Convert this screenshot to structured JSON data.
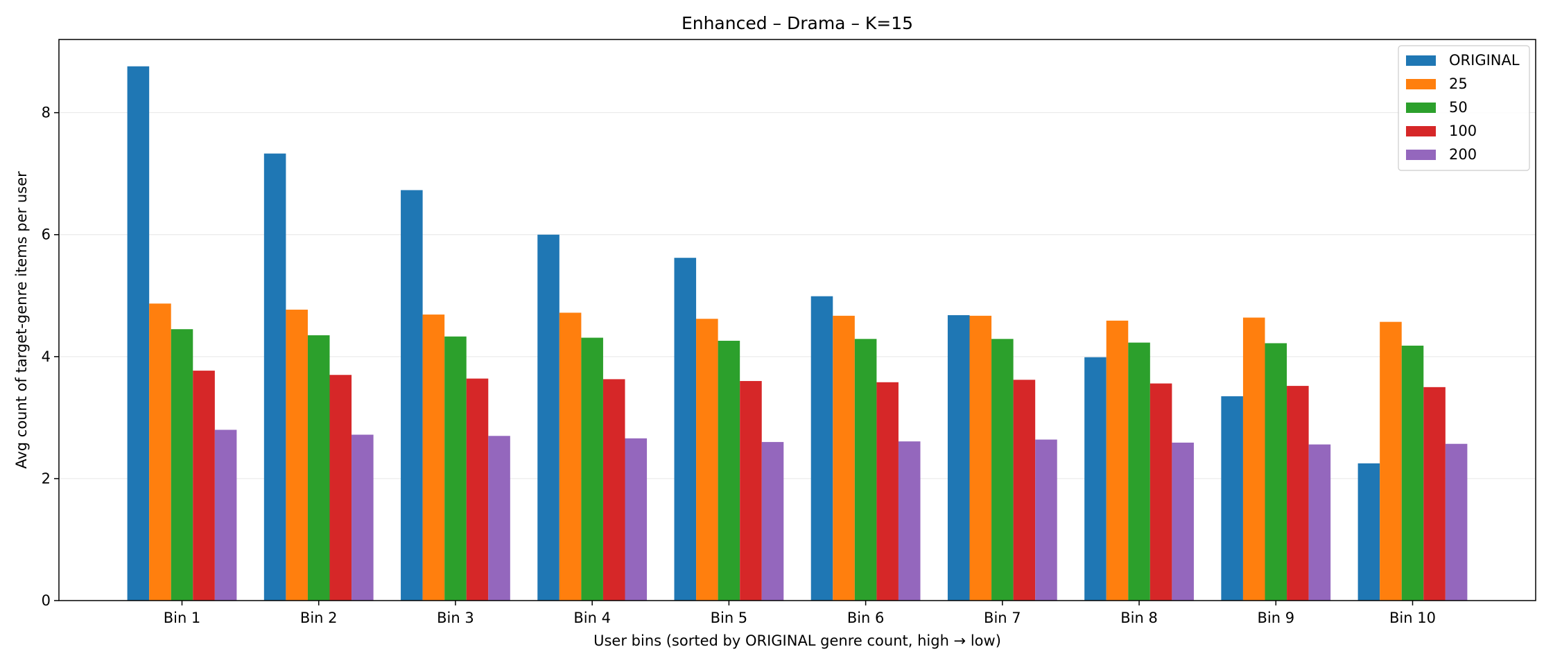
{
  "chart_data": {
    "type": "bar",
    "title": "Enhanced – Drama – K=15",
    "xlabel": "User bins (sorted by ORIGINAL genre count, high → low)",
    "ylabel": "Avg count of target-genre items per user",
    "categories": [
      "Bin 1",
      "Bin 2",
      "Bin 3",
      "Bin 4",
      "Bin 5",
      "Bin 6",
      "Bin 7",
      "Bin 8",
      "Bin 9",
      "Bin 10"
    ],
    "ylim": [
      0,
      9.2
    ],
    "yticks": [
      0,
      2,
      4,
      6,
      8
    ],
    "grid": "y",
    "legend_position": "top-right",
    "series": [
      {
        "name": "ORIGINAL",
        "color": "#1f77b4",
        "values": [
          8.76,
          7.33,
          6.73,
          6.0,
          5.62,
          4.99,
          4.68,
          3.99,
          3.35,
          2.25
        ]
      },
      {
        "name": "25",
        "color": "#ff7f0e",
        "values": [
          4.87,
          4.77,
          4.69,
          4.72,
          4.62,
          4.67,
          4.67,
          4.59,
          4.64,
          4.57
        ]
      },
      {
        "name": "50",
        "color": "#2ca02c",
        "values": [
          4.45,
          4.35,
          4.33,
          4.31,
          4.26,
          4.29,
          4.29,
          4.23,
          4.22,
          4.18
        ]
      },
      {
        "name": "100",
        "color": "#d62728",
        "values": [
          3.77,
          3.7,
          3.64,
          3.63,
          3.6,
          3.58,
          3.62,
          3.56,
          3.52,
          3.5
        ]
      },
      {
        "name": "200",
        "color": "#9467bd",
        "values": [
          2.8,
          2.72,
          2.7,
          2.66,
          2.6,
          2.61,
          2.64,
          2.59,
          2.56,
          2.57
        ]
      }
    ]
  }
}
